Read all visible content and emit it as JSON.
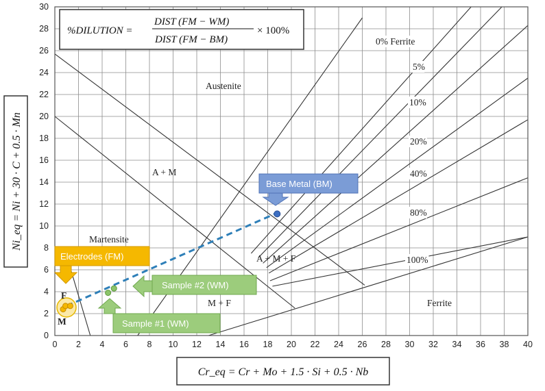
{
  "axes": {
    "x_ticks": [
      "0",
      "2",
      "4",
      "6",
      "8",
      "10",
      "12",
      "14",
      "16",
      "18",
      "20",
      "22",
      "24",
      "26",
      "28",
      "30",
      "32",
      "34",
      "36",
      "38",
      "40"
    ],
    "y_ticks": [
      "0",
      "2",
      "4",
      "6",
      "8",
      "10",
      "12",
      "14",
      "16",
      "18",
      "20",
      "22",
      "24",
      "26",
      "28",
      "30"
    ],
    "x_title": "Cr_eq = Cr + Mo + 1.5 · Si + 0.5 · Nb",
    "y_title": "Ni_eq = Ni + 30 · C + 0.5 · Mn"
  },
  "formula": {
    "lhs": "%DILUTION =",
    "numerator": "DIST (FM − WM)",
    "denominator": "DIST (FM − BM)",
    "factor": "× 100%"
  },
  "regions": {
    "austenite": "Austenite",
    "a_m": "A + M",
    "martensite": "Martensite",
    "a_m_f": "A + M + F",
    "m_f": "M + F",
    "ferrite": "Ferrite",
    "f": "F",
    "m": "M"
  },
  "ferrite_lines": [
    {
      "label": "0% Ferrite",
      "x1": 16.6,
      "y1": 7.5,
      "x2": 35.2,
      "y2": 30
    },
    {
      "label": "5%",
      "x1": 17.2,
      "y1": 7.1,
      "x2": 37.8,
      "y2": 30
    },
    {
      "label": "10%",
      "x1": 17.6,
      "y1": 6.6,
      "x2": 40.0,
      "y2": 28.3
    },
    {
      "label": "20%",
      "x1": 17.9,
      "y1": 6.2,
      "x2": 40.0,
      "y2": 23.5
    },
    {
      "label": "40%",
      "x1": 18.1,
      "y1": 5.7,
      "x2": 40.0,
      "y2": 19.7
    },
    {
      "label": "80%",
      "x1": 18.2,
      "y1": 5.0,
      "x2": 40.0,
      "y2": 14.4
    },
    {
      "label": "100%",
      "x1": 18.4,
      "y1": 4.5,
      "x2": 40.0,
      "y2": 9.0
    }
  ],
  "boundary_lines": [
    {
      "x1": 0,
      "y1": 25.7,
      "x2": 26.2,
      "y2": 4.6
    },
    {
      "x1": 0,
      "y1": 20.0,
      "x2": 20.3,
      "y2": 2.5
    },
    {
      "x1": 1.3,
      "y1": 6.2,
      "x2": 3.0,
      "y2": 0
    },
    {
      "x1": 7.0,
      "y1": 0,
      "x2": 26.0,
      "y2": 29.0
    },
    {
      "x1": 13.0,
      "y1": 0,
      "x2": 40.0,
      "y2": 9.0
    }
  ],
  "dilution_line": {
    "x1": 1.0,
    "y1": 2.7,
    "x2": 18.8,
    "y2": 11.2
  },
  "points": {
    "electrode": [
      {
        "x": 0.7,
        "y": 2.4
      },
      {
        "x": 0.9,
        "y": 2.7
      },
      {
        "x": 1.3,
        "y": 2.7
      }
    ],
    "sample1": {
      "x": 4.5,
      "y": 3.9
    },
    "sample2": {
      "x": 5.0,
      "y": 4.3
    },
    "base_metal": {
      "x": 18.8,
      "y": 11.1
    }
  },
  "callouts": {
    "base_metal": "Base Metal (BM)",
    "electrodes": "Electrodes (FM)",
    "sample2": "Sample #2 (WM)",
    "sample1": "Sample #1 (WM)"
  },
  "colors": {
    "grid": "#8c8c8c",
    "lines": "#333333",
    "dilution": "#2e7fb8",
    "blue_callout": "#7b9cd6",
    "orange_callout": "#f5b800",
    "green_callout": "#9ccc7c"
  }
}
